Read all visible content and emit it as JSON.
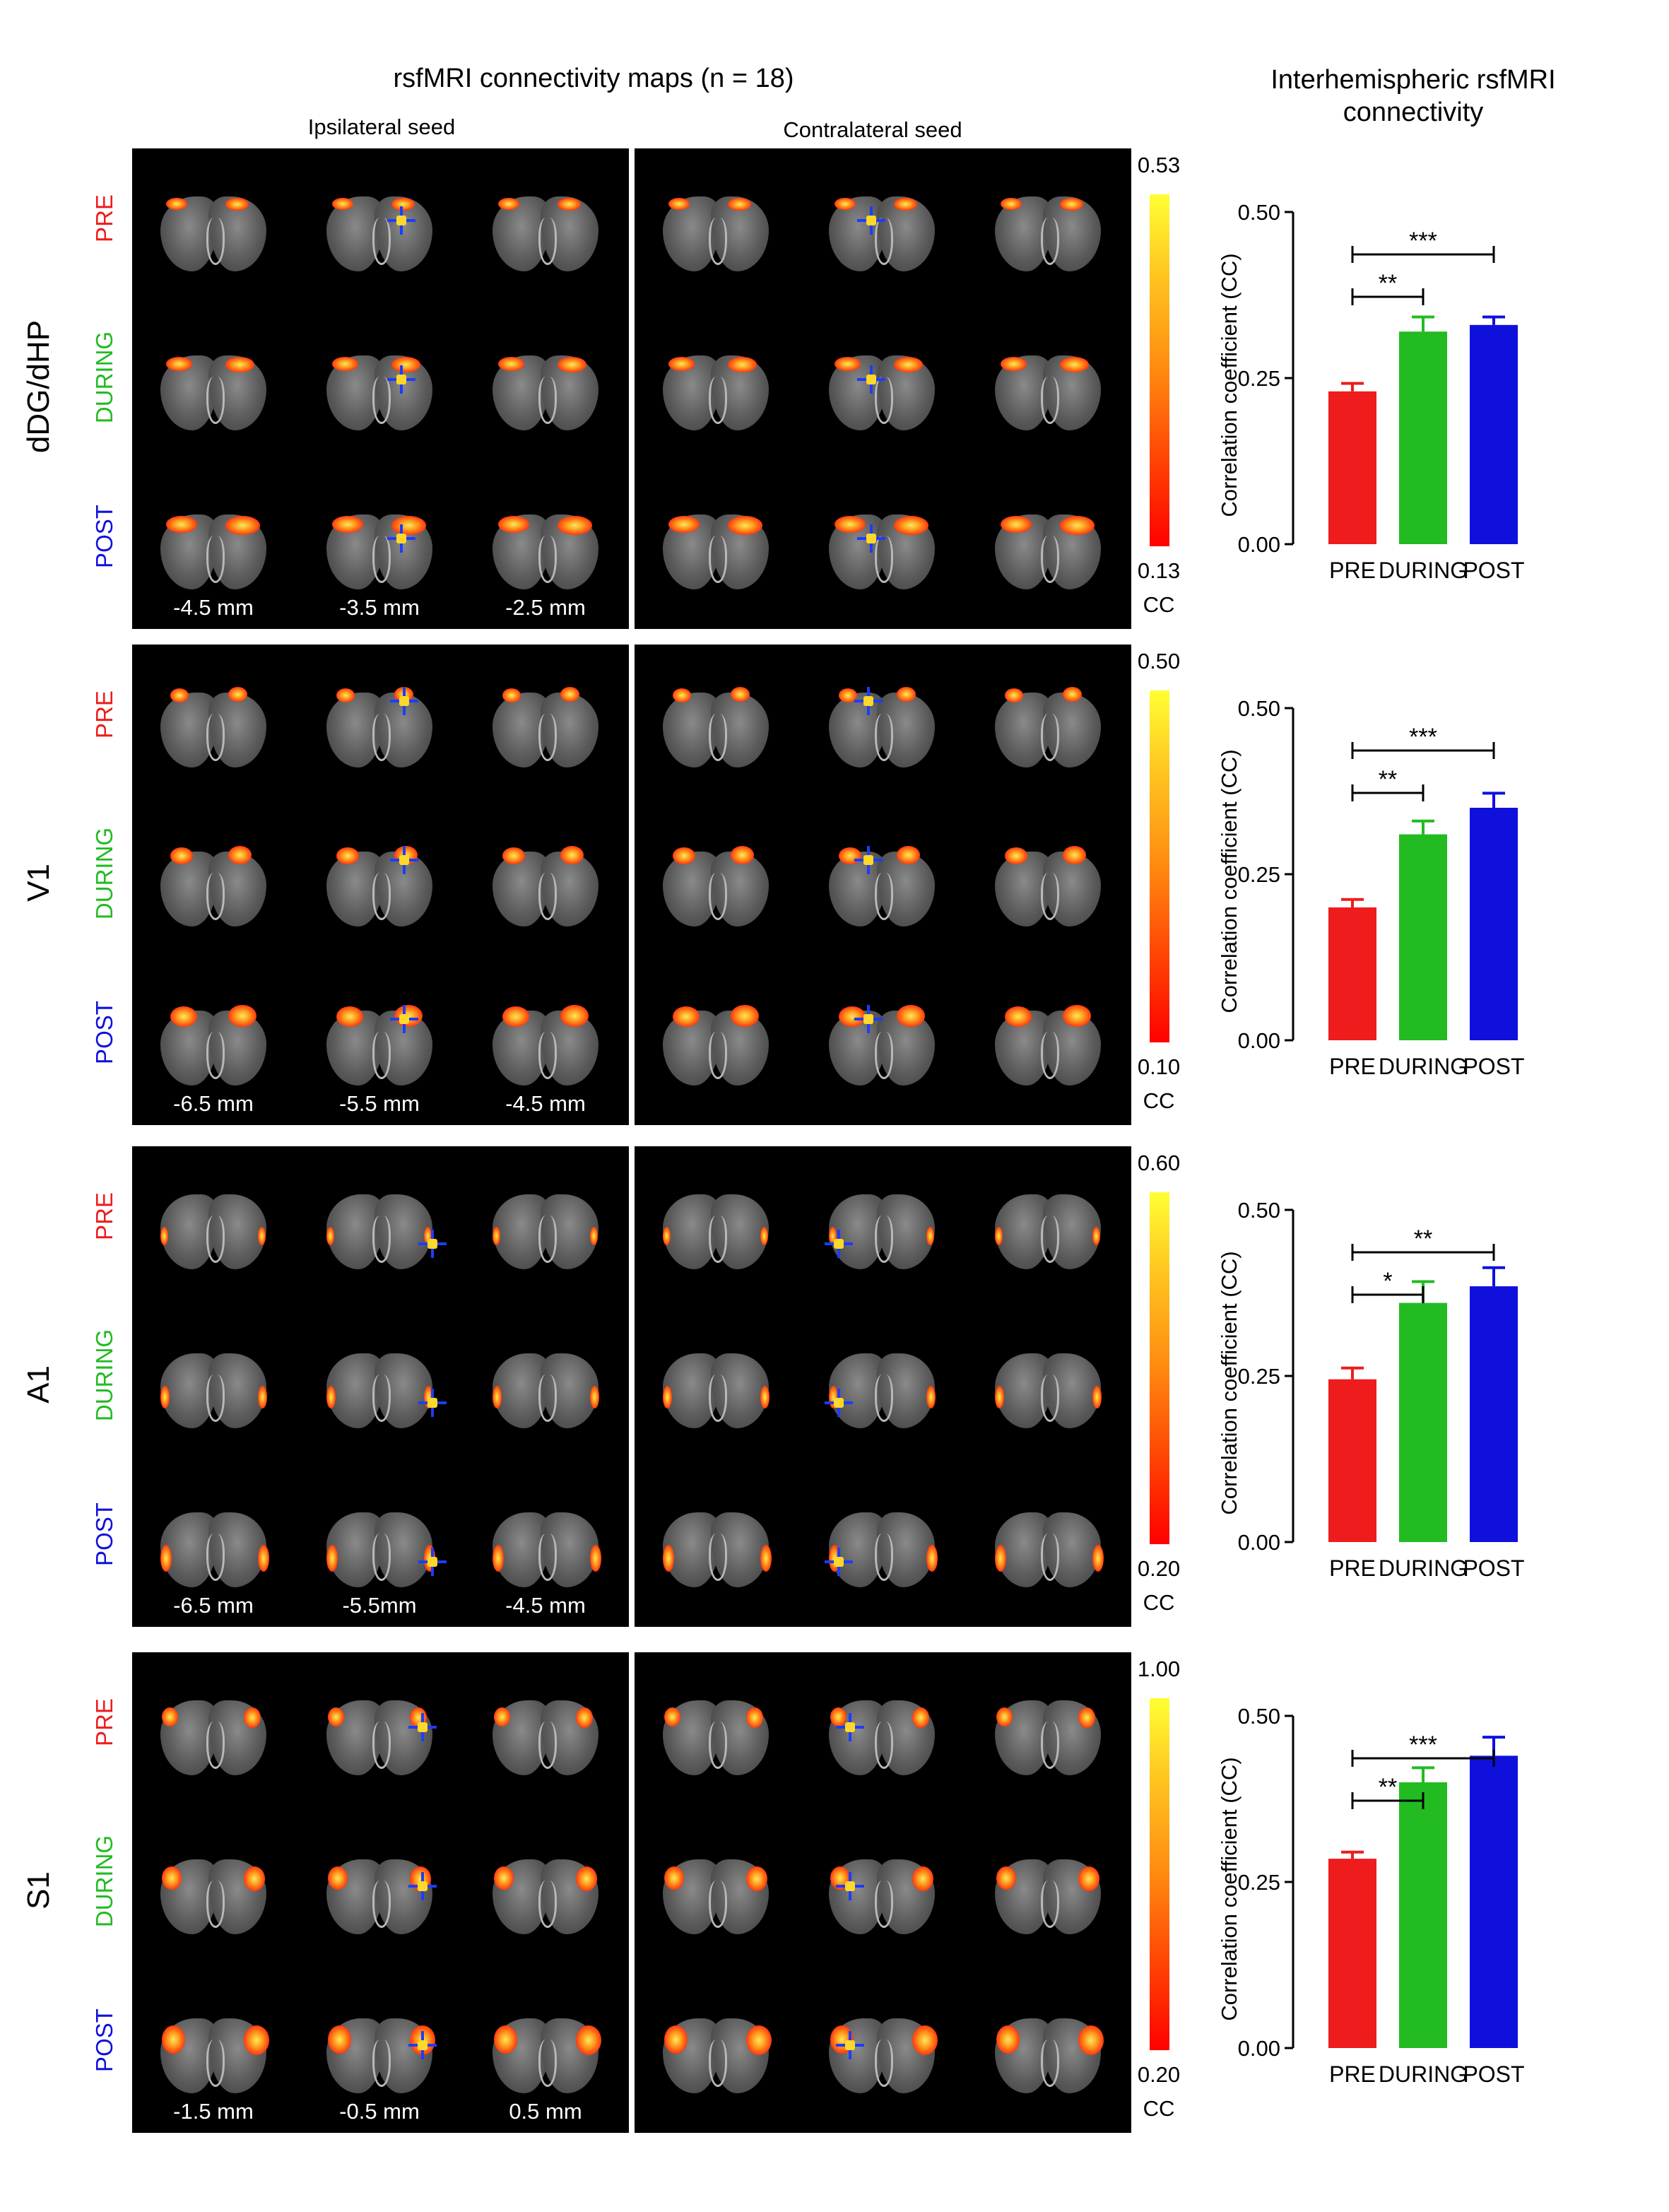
{
  "figure": {
    "title_maps": "rsfMRI connectivity maps (n = 18)",
    "title_bars": "Interhemispheric rsfMRI connectivity",
    "subtitle_ipsi": "Ipsilateral seed",
    "subtitle_contra": "Contralateral seed",
    "conditions": [
      "PRE",
      "DURING",
      "POST"
    ],
    "condition_colors": [
      "#ee1c1c",
      "#22bb22",
      "#1010dd"
    ],
    "colorbar_unit": "CC",
    "regions": [
      {
        "name": "dDG/dHP",
        "slices": [
          "-4.5 mm",
          "-3.5 mm",
          "-2.5 mm"
        ],
        "cc_max": "0.53",
        "cc_min": "0.13"
      },
      {
        "name": "V1",
        "slices": [
          "-6.5 mm",
          "-5.5 mm",
          "-4.5 mm"
        ],
        "cc_max": "0.50",
        "cc_min": "0.10"
      },
      {
        "name": "A1",
        "slices": [
          "-6.5 mm",
          "-5.5mm",
          "-4.5 mm"
        ],
        "cc_max": "0.60",
        "cc_min": "0.20"
      },
      {
        "name": "S1",
        "slices": [
          "-1.5 mm",
          "-0.5 mm",
          "0.5 mm"
        ],
        "cc_max": "1.00",
        "cc_min": "0.20"
      }
    ]
  },
  "chart_data": [
    {
      "type": "bar",
      "region": "dDG/dHP",
      "categories": [
        "PRE",
        "DURING",
        "POST"
      ],
      "values": [
        0.23,
        0.32,
        0.33
      ],
      "errors": [
        0.012,
        0.022,
        0.012
      ],
      "ylabel": "Correlation coefficient (CC)",
      "ylim": [
        0,
        0.5
      ],
      "yticks": [
        "0.00",
        "0.25",
        "0.50"
      ],
      "significance": [
        {
          "from": "PRE",
          "to": "DURING",
          "label": "**"
        },
        {
          "from": "PRE",
          "to": "POST",
          "label": "***"
        }
      ]
    },
    {
      "type": "bar",
      "region": "V1",
      "categories": [
        "PRE",
        "DURING",
        "POST"
      ],
      "values": [
        0.2,
        0.31,
        0.35
      ],
      "errors": [
        0.012,
        0.02,
        0.022
      ],
      "ylabel": "Correlation coefficient (CC)",
      "ylim": [
        0,
        0.5
      ],
      "yticks": [
        "0.00",
        "0.25",
        "0.50"
      ],
      "significance": [
        {
          "from": "PRE",
          "to": "DURING",
          "label": "**"
        },
        {
          "from": "PRE",
          "to": "POST",
          "label": "***"
        }
      ]
    },
    {
      "type": "bar",
      "region": "A1",
      "categories": [
        "PRE",
        "DURING",
        "POST"
      ],
      "values": [
        0.245,
        0.36,
        0.385
      ],
      "errors": [
        0.017,
        0.032,
        0.028
      ],
      "ylabel": "Correlation coefficient (CC)",
      "ylim": [
        0,
        0.5
      ],
      "yticks": [
        "0.00",
        "0.25",
        "0.50"
      ],
      "significance": [
        {
          "from": "PRE",
          "to": "DURING",
          "label": "*"
        },
        {
          "from": "PRE",
          "to": "POST",
          "label": "**"
        }
      ]
    },
    {
      "type": "bar",
      "region": "S1",
      "categories": [
        "PRE",
        "DURING",
        "POST"
      ],
      "values": [
        0.285,
        0.4,
        0.44
      ],
      "errors": [
        0.01,
        0.022,
        0.028
      ],
      "ylabel": "Correlation coefficient (CC)",
      "ylim": [
        0,
        0.5
      ],
      "yticks": [
        "0.00",
        "0.25",
        "0.50"
      ],
      "significance": [
        {
          "from": "PRE",
          "to": "DURING",
          "label": "**"
        },
        {
          "from": "PRE",
          "to": "POST",
          "label": "***"
        }
      ]
    }
  ]
}
